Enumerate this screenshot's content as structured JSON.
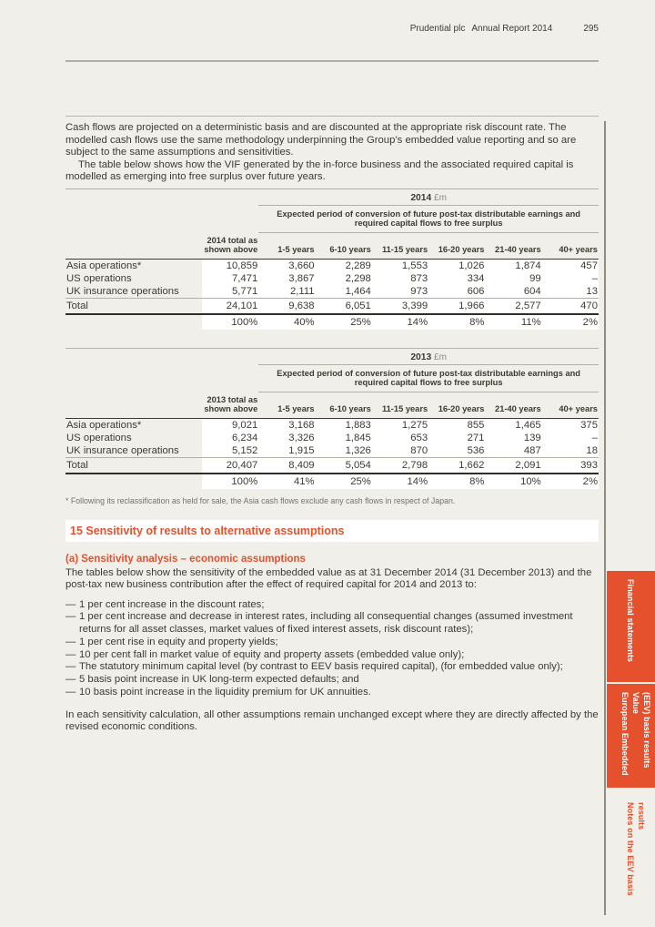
{
  "header": {
    "title_left": "Prudential plc",
    "title_right": "Annual Report 2014",
    "page_number": "295"
  },
  "intro": {
    "para1": "Cash flows are projected on a deterministic basis and are discounted at the appropriate risk discount rate. The modelled cash flows use the same methodology underpinning the Group’s embedded value reporting and so are subject to the same assumptions and sensitivities.",
    "para2": "The table below shows how the VIF generated by the in-force business and the associated required capital is modelled as emerging into free surplus over future years."
  },
  "tables": [
    {
      "year": "2014",
      "unit": "£m",
      "band_header": "Expected period of conversion of future post-tax distributable earnings and required capital flows to free surplus",
      "total_col_header": "2014 total as shown above",
      "period_headers": [
        "1-5 years",
        "6-10 years",
        "11-15 years",
        "16-20 years",
        "21-40 years",
        "40+ years"
      ],
      "rows": [
        {
          "label": "Asia operations*",
          "values": [
            "10,859",
            "3,660",
            "2,289",
            "1,553",
            "1,026",
            "1,874",
            "457"
          ]
        },
        {
          "label": "US operations",
          "values": [
            "7,471",
            "3,867",
            "2,298",
            "873",
            "334",
            "99",
            "–"
          ]
        },
        {
          "label": "UK insurance operations",
          "values": [
            "5,771",
            "2,111",
            "1,464",
            "973",
            "606",
            "604",
            "13"
          ]
        }
      ],
      "total_row": {
        "label": "Total",
        "values": [
          "24,101",
          "9,638",
          "6,051",
          "3,399",
          "1,966",
          "2,577",
          "470"
        ]
      },
      "percent_row": [
        "100%",
        "40%",
        "25%",
        "14%",
        "8%",
        "11%",
        "2%"
      ]
    },
    {
      "year": "2013",
      "unit": "£m",
      "band_header": "Expected period of conversion of future post-tax distributable earnings and required capital flows to free surplus",
      "total_col_header": "2013 total as shown above",
      "period_headers": [
        "1-5 years",
        "6-10 years",
        "11-15 years",
        "16-20 years",
        "21-40 years",
        "40+ years"
      ],
      "rows": [
        {
          "label": "Asia operations*",
          "values": [
            "9,021",
            "3,168",
            "1,883",
            "1,275",
            "855",
            "1,465",
            "375"
          ]
        },
        {
          "label": "US operations",
          "values": [
            "6,234",
            "3,326",
            "1,845",
            "653",
            "271",
            "139",
            "–"
          ]
        },
        {
          "label": "UK insurance operations",
          "values": [
            "5,152",
            "1,915",
            "1,326",
            "870",
            "536",
            "487",
            "18"
          ]
        }
      ],
      "total_row": {
        "label": "Total",
        "values": [
          "20,407",
          "8,409",
          "5,054",
          "2,798",
          "1,662",
          "2,091",
          "393"
        ]
      },
      "percent_row": [
        "100%",
        "41%",
        "25%",
        "14%",
        "8%",
        "10%",
        "2%"
      ]
    }
  ],
  "footnote": "* Following its reclassification as held for sale, the Asia cash flows exclude any cash flows in respect of Japan.",
  "section15": {
    "heading": "15 Sensitivity of results to alternative assumptions",
    "sub_heading": "(a) Sensitivity analysis – economic assumptions",
    "intro": "The tables below show the sensitivity of the embedded value as at 31 December 2014 (31 December 2013) and the post-tax new business contribution after the effect of required capital for 2014 and 2013 to:",
    "bullet_marker": "—",
    "bullets": [
      "1 per cent increase in the discount rates;",
      "1 per cent increase and decrease in interest rates, including all consequential changes (assumed investment returns for all asset classes, market values of fixed interest assets, risk discount rates);",
      "1 per cent rise in equity and property yields;",
      "10 per cent fall in market value of equity and property assets (embedded value only);",
      "The statutory minimum capital level (by contrast to EEV basis required capital), (for embedded value only);",
      "5 basis point increase in UK long-term expected defaults; and",
      "10 basis point increase in the liquidity premium for UK annuities."
    ],
    "closing": "In each sensitivity calculation, all other assumptions remain unchanged except where they are directly affected by the revised economic conditions."
  },
  "sidebar": {
    "tabs": [
      {
        "label": "Financial statements",
        "active": true
      },
      {
        "label": "European Embedded Value (EEV) basis results",
        "active": true,
        "lines": [
          "European Embedded Value",
          "(EEV) basis results"
        ]
      },
      {
        "label": "Notes on the EEV basis results",
        "active": false
      }
    ]
  },
  "colors": {
    "accent_orange": "#e5512d",
    "page_background": "#f1efe9",
    "panel_white": "#ffffff",
    "text": "#3c3a33",
    "rule_gray": "#b3b0a8",
    "rule_dark": "#2f2e29",
    "footnote_gray": "#75726a",
    "sidebar_line": "#8f8c84",
    "unit_gray": "#8d8a81"
  }
}
